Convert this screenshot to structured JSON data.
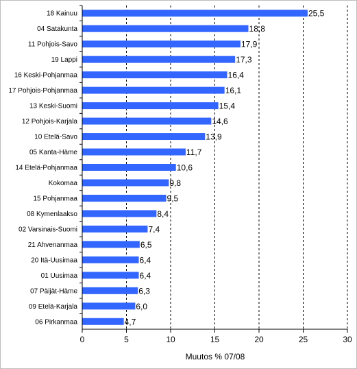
{
  "chart_data": {
    "type": "bar",
    "orientation": "horizontal",
    "categories": [
      "18 Kainuu",
      "04 Satakunta",
      "11 Pohjois-Savo",
      "19 Lappi",
      "16 Keski-Pohjanmaa",
      "17 Pohjois-Pohjanmaa",
      "13 Keski-Suomi",
      "12 Pohjois-Karjala",
      "10 Etelä-Savo",
      "05 Kanta-Häme",
      "14 Etelä-Pohjanmaa",
      "Kokomaa",
      "15 Pohjanmaa",
      "08 Kymenlaakso",
      "02 Varsinais-Suomi",
      "21 Ahvenanmaa",
      "20 Itä-Uusimaa",
      "01 Uusimaa",
      "07 Päijät-Häme",
      "09 Etelä-Karjala",
      "06 Pirkanmaa"
    ],
    "values": [
      25.5,
      18.8,
      17.9,
      17.3,
      16.4,
      16.1,
      15.4,
      14.6,
      13.9,
      11.7,
      10.6,
      9.8,
      9.5,
      8.4,
      7.4,
      6.5,
      6.4,
      6.4,
      6.3,
      6.0,
      4.7
    ],
    "value_labels": [
      "25,5",
      "18,8",
      "17,9",
      "17,3",
      "16,4",
      "16,1",
      "15,4",
      "14,6",
      "13,9",
      "11,7",
      "10,6",
      "9,8",
      "9,5",
      "8,4",
      "7,4",
      "6,5",
      "6,4",
      "6,4",
      "6,3",
      "6,0",
      "4,7"
    ],
    "xlabel": "Muutos % 07/08",
    "ylabel": "",
    "xlim": [
      0,
      30
    ],
    "xticks": [
      0,
      5,
      10,
      15,
      20,
      25,
      30
    ],
    "grid": "vertical dashed",
    "legend": "none",
    "colors": {
      "bar": "#3366ff",
      "grid": "#000000",
      "axis": "#000000"
    }
  }
}
